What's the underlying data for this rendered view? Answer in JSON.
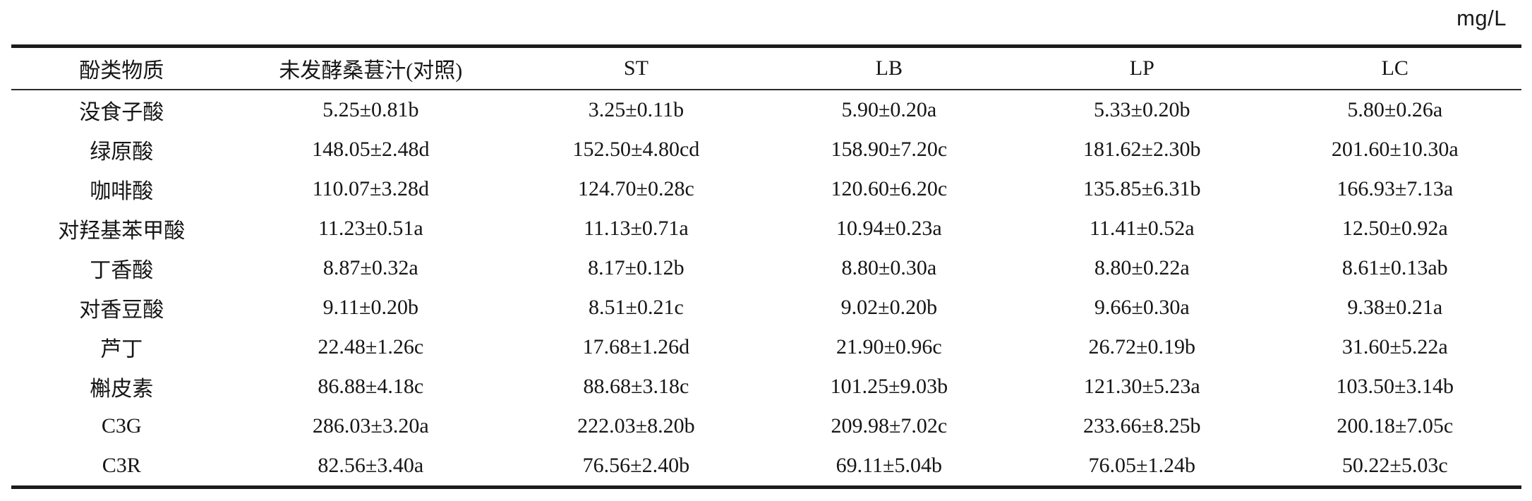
{
  "unit": "mg/L",
  "chart_data": {
    "type": "table",
    "columns": [
      "酚类物质",
      "未发酵桑葚汁(对照)",
      "ST",
      "LB",
      "LP",
      "LC"
    ],
    "rows": [
      {
        "name": "没食子酸",
        "values": [
          "5.25±0.81b",
          "3.25±0.11b",
          "5.90±0.20a",
          "5.33±0.20b",
          "5.80±0.26a"
        ]
      },
      {
        "name": "绿原酸",
        "values": [
          "148.05±2.48d",
          "152.50±4.80cd",
          "158.90±7.20c",
          "181.62±2.30b",
          "201.60±10.30a"
        ]
      },
      {
        "name": "咖啡酸",
        "values": [
          "110.07±3.28d",
          "124.70±0.28c",
          "120.60±6.20c",
          "135.85±6.31b",
          "166.93±7.13a"
        ]
      },
      {
        "name": "对羟基苯甲酸",
        "values": [
          "11.23±0.51a",
          "11.13±0.71a",
          "10.94±0.23a",
          "11.41±0.52a",
          "12.50±0.92a"
        ]
      },
      {
        "name": "丁香酸",
        "values": [
          "8.87±0.32a",
          "8.17±0.12b",
          "8.80±0.30a",
          "8.80±0.22a",
          "8.61±0.13ab"
        ]
      },
      {
        "name": "对香豆酸",
        "values": [
          "9.11±0.20b",
          "8.51±0.21c",
          "9.02±0.20b",
          "9.66±0.30a",
          "9.38±0.21a"
        ]
      },
      {
        "name": "芦丁",
        "values": [
          "22.48±1.26c",
          "17.68±1.26d",
          "21.90±0.96c",
          "26.72±0.19b",
          "31.60±5.22a"
        ]
      },
      {
        "name": "槲皮素",
        "values": [
          "86.88±4.18c",
          "88.68±3.18c",
          "101.25±9.03b",
          "121.30±5.23a",
          "103.50±3.14b"
        ]
      },
      {
        "name": "C3G",
        "values": [
          "286.03±3.20a",
          "222.03±8.20b",
          "209.98±7.02c",
          "233.66±8.25b",
          "200.18±7.05c"
        ]
      },
      {
        "name": "C3R",
        "values": [
          "82.56±3.40a",
          "76.56±2.40b",
          "69.11±5.04b",
          "76.05±1.24b",
          "50.22±5.03c"
        ]
      }
    ]
  }
}
